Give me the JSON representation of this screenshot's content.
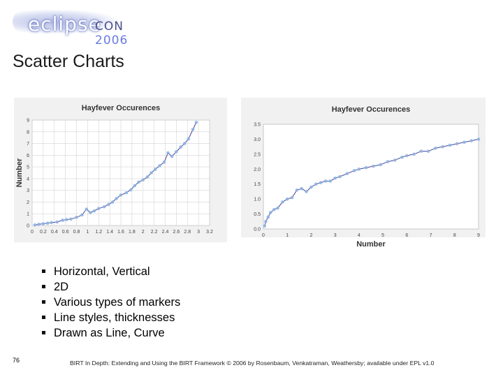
{
  "logo": {
    "word": "eclipse",
    "con": "CON",
    "year": "2006"
  },
  "slide_title": "Scatter Charts",
  "chart_data": [
    {
      "type": "scatter",
      "title": "Hayfever Occurences",
      "xlabel": "",
      "ylabel": "Number",
      "xlim": [
        0,
        3.2
      ],
      "ylim": [
        0,
        9
      ],
      "x_ticks": [
        "0",
        "0.2",
        "0.4",
        "0.6",
        "0.8",
        "1",
        "1.2",
        "1.4",
        "1.6",
        "1.8",
        "2",
        "2.2",
        "2.4",
        "2.6",
        "2.8",
        "3",
        "3.2"
      ],
      "y_ticks": [
        "0",
        "1",
        "2",
        "3",
        "4",
        "5",
        "6",
        "7",
        "8",
        "9"
      ],
      "grid": true,
      "trend": "curve",
      "colors": {
        "marker": "#8eb4e3",
        "trend": "#4b3f8f"
      },
      "series": [
        {
          "name": "Hayfever Occurences",
          "x": [
            0.05,
            0.12,
            0.2,
            0.28,
            0.35,
            0.45,
            0.55,
            0.62,
            0.7,
            0.8,
            0.9,
            0.98,
            1.05,
            1.12,
            1.2,
            1.3,
            1.38,
            1.45,
            1.52,
            1.6,
            1.7,
            1.78,
            1.85,
            1.92,
            2.0,
            2.08,
            2.15,
            2.22,
            2.3,
            2.38,
            2.45,
            2.52,
            2.6,
            2.68,
            2.75,
            2.82,
            2.9,
            2.96
          ],
          "y": [
            0.05,
            0.1,
            0.15,
            0.2,
            0.25,
            0.3,
            0.45,
            0.5,
            0.55,
            0.7,
            0.9,
            1.4,
            1.1,
            1.25,
            1.45,
            1.6,
            1.8,
            2.0,
            2.3,
            2.6,
            2.8,
            3.05,
            3.4,
            3.7,
            3.9,
            4.15,
            4.5,
            4.8,
            5.1,
            5.4,
            6.2,
            5.9,
            6.3,
            6.7,
            7.0,
            7.4,
            8.2,
            8.8
          ]
        }
      ]
    },
    {
      "type": "scatter",
      "title": "Hayfever Occurences",
      "xlabel": "Number",
      "ylabel": "",
      "xlim": [
        0,
        9
      ],
      "ylim": [
        0,
        3.5
      ],
      "x_ticks": [
        "0",
        "1",
        "2",
        "3",
        "4",
        "5",
        "6",
        "7",
        "8",
        "9"
      ],
      "y_ticks": [
        "0.0",
        "0.5",
        "1.0",
        "1.5",
        "2.0",
        "2.5",
        "3.0",
        "3.5"
      ],
      "grid": false,
      "trend": "curve",
      "colors": {
        "marker": "#8eb4e3",
        "trend": "#4b3f8f"
      },
      "series": [
        {
          "name": "Hayfever Occurences",
          "x": [
            0.05,
            0.1,
            0.2,
            0.3,
            0.45,
            0.6,
            0.8,
            1.0,
            1.2,
            1.4,
            1.6,
            1.8,
            2.0,
            2.2,
            2.4,
            2.6,
            2.8,
            3.0,
            3.2,
            3.5,
            3.8,
            4.0,
            4.3,
            4.6,
            4.9,
            5.2,
            5.5,
            5.8,
            6.0,
            6.3,
            6.6,
            6.9,
            7.2,
            7.5,
            7.8,
            8.1,
            8.4,
            8.7,
            9.0
          ],
          "y": [
            0.1,
            0.25,
            0.4,
            0.55,
            0.65,
            0.7,
            0.9,
            1.0,
            1.05,
            1.3,
            1.35,
            1.25,
            1.4,
            1.5,
            1.55,
            1.6,
            1.6,
            1.7,
            1.75,
            1.85,
            1.95,
            2.0,
            2.05,
            2.1,
            2.15,
            2.25,
            2.3,
            2.4,
            2.45,
            2.5,
            2.6,
            2.6,
            2.7,
            2.75,
            2.8,
            2.85,
            2.9,
            2.95,
            3.0
          ]
        }
      ]
    }
  ],
  "bullets": [
    "Horizontal, Vertical",
    "2D",
    "Various types of markers",
    "Line styles, thicknesses",
    "Drawn as Line, Curve"
  ],
  "slide_number": "76",
  "footer": "BIRT In Depth: Extending and Using the BIRT Framework © 2006 by Rosenbaum, Venkatraman, Weathersby; available under EPL v1.0"
}
